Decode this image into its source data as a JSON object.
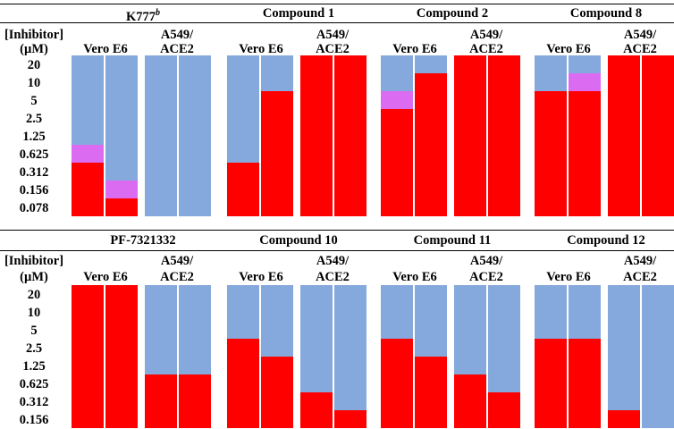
{
  "colors": {
    "inhibited": "#ff0000",
    "infected": "#85a9dc",
    "partial": "#db6bf0"
  },
  "row_label": {
    "line1": "[Inhibitor]",
    "line2": "(µM)"
  },
  "cell_labels": {
    "vero": "Vero E6",
    "a549_line1": "A549/",
    "a549_line2": "ACE2"
  },
  "chart_data": {
    "type": "heatmap",
    "description_legend": [
      "inhibited",
      "partial",
      "infected"
    ],
    "panels": [
      {
        "row": 0,
        "compound": "K777",
        "superscript": "b",
        "concentrations": [
          "20",
          "10",
          "5",
          "2.5",
          "1.25",
          "0.625",
          "0.312",
          "0.156",
          "0.078"
        ],
        "cell_lines": [
          "Vero E6",
          "Vero E6",
          "A549/ACE2",
          "A549/ACE2"
        ],
        "replicates": [
          [
            "infected",
            "infected",
            "infected",
            "infected",
            "infected",
            "partial",
            "inhibited",
            "inhibited",
            "inhibited"
          ],
          [
            "infected",
            "infected",
            "infected",
            "infected",
            "infected",
            "infected",
            "infected",
            "partial",
            "inhibited"
          ],
          [
            "infected",
            "infected",
            "infected",
            "infected",
            "infected",
            "infected",
            "infected",
            "infected",
            "infected"
          ],
          [
            "infected",
            "infected",
            "infected",
            "infected",
            "infected",
            "infected",
            "infected",
            "infected",
            "infected"
          ]
        ]
      },
      {
        "row": 0,
        "compound": "Compound 1",
        "superscript": "",
        "concentrations": [
          "20",
          "10",
          "5",
          "2.5",
          "1.25",
          "0.625",
          "0.312",
          "0.156",
          "0.078"
        ],
        "cell_lines": [
          "Vero E6",
          "Vero E6",
          "A549/ACE2",
          "A549/ACE2"
        ],
        "replicates": [
          [
            "infected",
            "infected",
            "infected",
            "infected",
            "infected",
            "infected",
            "inhibited",
            "inhibited",
            "inhibited"
          ],
          [
            "infected",
            "infected",
            "inhibited",
            "inhibited",
            "inhibited",
            "inhibited",
            "inhibited",
            "inhibited",
            "inhibited"
          ],
          [
            "inhibited",
            "inhibited",
            "inhibited",
            "inhibited",
            "inhibited",
            "inhibited",
            "inhibited",
            "inhibited",
            "inhibited"
          ],
          [
            "inhibited",
            "inhibited",
            "inhibited",
            "inhibited",
            "inhibited",
            "inhibited",
            "inhibited",
            "inhibited",
            "inhibited"
          ]
        ]
      },
      {
        "row": 0,
        "compound": "Compound 2",
        "superscript": "",
        "concentrations": [
          "20",
          "10",
          "5",
          "2.5",
          "1.25",
          "0.625",
          "0.312",
          "0.156",
          "0.078"
        ],
        "cell_lines": [
          "Vero E6",
          "Vero E6",
          "A549/ACE2",
          "A549/ACE2"
        ],
        "replicates": [
          [
            "infected",
            "infected",
            "partial",
            "inhibited",
            "inhibited",
            "inhibited",
            "inhibited",
            "inhibited",
            "inhibited"
          ],
          [
            "infected",
            "inhibited",
            "inhibited",
            "inhibited",
            "inhibited",
            "inhibited",
            "inhibited",
            "inhibited",
            "inhibited"
          ],
          [
            "inhibited",
            "inhibited",
            "inhibited",
            "inhibited",
            "inhibited",
            "inhibited",
            "inhibited",
            "inhibited",
            "inhibited"
          ],
          [
            "inhibited",
            "inhibited",
            "inhibited",
            "inhibited",
            "inhibited",
            "inhibited",
            "inhibited",
            "inhibited",
            "inhibited"
          ]
        ]
      },
      {
        "row": 0,
        "compound": "Compound 8",
        "superscript": "",
        "concentrations": [
          "20",
          "10",
          "5",
          "2.5",
          "1.25",
          "0.625",
          "0.312",
          "0.156",
          "0.078"
        ],
        "cell_lines": [
          "Vero E6",
          "Vero E6",
          "A549/ACE2",
          "A549/ACE2"
        ],
        "replicates": [
          [
            "infected",
            "infected",
            "inhibited",
            "inhibited",
            "inhibited",
            "inhibited",
            "inhibited",
            "inhibited",
            "inhibited"
          ],
          [
            "infected",
            "partial",
            "inhibited",
            "inhibited",
            "inhibited",
            "inhibited",
            "inhibited",
            "inhibited",
            "inhibited"
          ],
          [
            "inhibited",
            "inhibited",
            "inhibited",
            "inhibited",
            "inhibited",
            "inhibited",
            "inhibited",
            "inhibited",
            "inhibited"
          ],
          [
            "inhibited",
            "inhibited",
            "inhibited",
            "inhibited",
            "inhibited",
            "inhibited",
            "inhibited",
            "inhibited",
            "inhibited"
          ]
        ]
      },
      {
        "row": 1,
        "compound": "PF-7321332",
        "superscript": "",
        "concentrations": [
          "20",
          "10",
          "5",
          "2.5",
          "1.25",
          "0.625",
          "0.312",
          "0.156"
        ],
        "cell_lines": [
          "Vero E6",
          "Vero E6",
          "A549/ACE2",
          "A549/ACE2"
        ],
        "replicates": [
          [
            "inhibited",
            "inhibited",
            "inhibited",
            "inhibited",
            "inhibited",
            "inhibited",
            "inhibited",
            "inhibited"
          ],
          [
            "inhibited",
            "inhibited",
            "inhibited",
            "inhibited",
            "inhibited",
            "inhibited",
            "inhibited",
            "inhibited"
          ],
          [
            "infected",
            "infected",
            "infected",
            "infected",
            "infected",
            "inhibited",
            "inhibited",
            "inhibited"
          ],
          [
            "infected",
            "infected",
            "infected",
            "infected",
            "infected",
            "inhibited",
            "inhibited",
            "inhibited"
          ]
        ]
      },
      {
        "row": 1,
        "compound": "Compound 10",
        "superscript": "",
        "concentrations": [
          "20",
          "10",
          "5",
          "2.5",
          "1.25",
          "0.625",
          "0.312",
          "0.156"
        ],
        "cell_lines": [
          "Vero E6",
          "Vero E6",
          "A549/ACE2",
          "A549/ACE2"
        ],
        "replicates": [
          [
            "infected",
            "infected",
            "infected",
            "inhibited",
            "inhibited",
            "inhibited",
            "inhibited",
            "inhibited"
          ],
          [
            "infected",
            "infected",
            "infected",
            "infected",
            "inhibited",
            "inhibited",
            "inhibited",
            "inhibited"
          ],
          [
            "infected",
            "infected",
            "infected",
            "infected",
            "infected",
            "infected",
            "inhibited",
            "inhibited"
          ],
          [
            "infected",
            "infected",
            "infected",
            "infected",
            "infected",
            "infected",
            "infected",
            "inhibited"
          ]
        ]
      },
      {
        "row": 1,
        "compound": "Compound 11",
        "superscript": "",
        "concentrations": [
          "20",
          "10",
          "5",
          "2.5",
          "1.25",
          "0.625",
          "0.312",
          "0.156"
        ],
        "cell_lines": [
          "Vero E6",
          "Vero E6",
          "A549/ACE2",
          "A549/ACE2"
        ],
        "replicates": [
          [
            "infected",
            "infected",
            "infected",
            "inhibited",
            "inhibited",
            "inhibited",
            "inhibited",
            "inhibited"
          ],
          [
            "infected",
            "infected",
            "infected",
            "infected",
            "inhibited",
            "inhibited",
            "inhibited",
            "inhibited"
          ],
          [
            "infected",
            "infected",
            "infected",
            "infected",
            "infected",
            "inhibited",
            "inhibited",
            "inhibited"
          ],
          [
            "infected",
            "infected",
            "infected",
            "infected",
            "infected",
            "infected",
            "inhibited",
            "inhibited"
          ]
        ]
      },
      {
        "row": 1,
        "compound": "Compound 12",
        "superscript": "",
        "concentrations": [
          "20",
          "10",
          "5",
          "2.5",
          "1.25",
          "0.625",
          "0.312",
          "0.156"
        ],
        "cell_lines": [
          "Vero E6",
          "Vero E6",
          "A549/ACE2",
          "A549/ACE2"
        ],
        "replicates": [
          [
            "infected",
            "infected",
            "infected",
            "inhibited",
            "inhibited",
            "inhibited",
            "inhibited",
            "inhibited"
          ],
          [
            "infected",
            "infected",
            "infected",
            "inhibited",
            "inhibited",
            "inhibited",
            "inhibited",
            "inhibited"
          ],
          [
            "infected",
            "infected",
            "infected",
            "infected",
            "infected",
            "infected",
            "infected",
            "inhibited"
          ],
          [
            "infected",
            "infected",
            "infected",
            "infected",
            "infected",
            "infected",
            "infected",
            "infected"
          ]
        ]
      }
    ]
  }
}
